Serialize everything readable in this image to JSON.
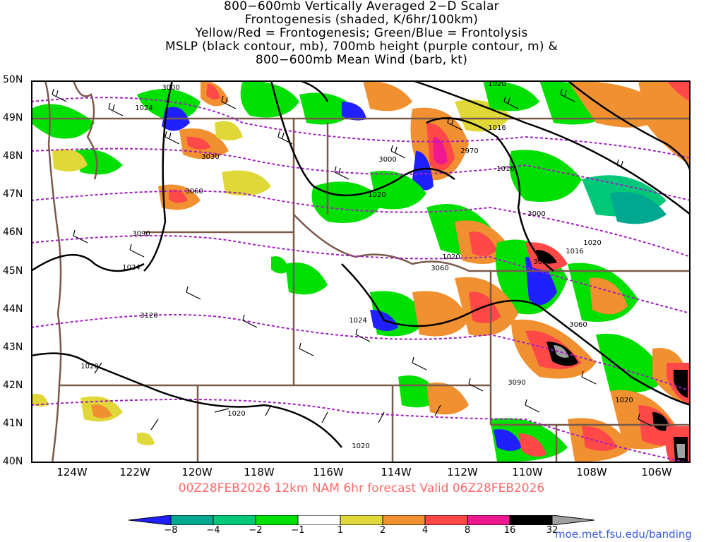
{
  "title_lines": [
    "800−600mb Vertically Averaged 2−D Scalar",
    "Frontogenesis (shaded, K/6hr/100km)",
    "Yellow/Red = Frontogenesis;  Green/Blue = Frontolysis",
    "MSLP (black contour, mb), 700mb height (purple contour, m) &",
    "800−600mb Mean Wind (barb, kt)"
  ],
  "lat_labels": [
    "50N",
    "49N",
    "48N",
    "47N",
    "46N",
    "45N",
    "44N",
    "43N",
    "42N",
    "41N",
    "40N"
  ],
  "lon_labels": [
    "124W",
    "122W",
    "120W",
    "118W",
    "116W",
    "114W",
    "112W",
    "110W",
    "108W",
    "106W"
  ],
  "valid_text": "00Z28FEB2026 12km NAM 6hr forecast Valid 06Z28FEB2026",
  "colorbar": {
    "labels": [
      "−8",
      "−4",
      "−2",
      "−1",
      "1",
      "2",
      "4",
      "8",
      "16",
      "32"
    ],
    "colors": [
      "#2020ff",
      "#00a890",
      "#00c878",
      "#00e000",
      "#ffffff",
      "#e0d838",
      "#f09030",
      "#ff4848",
      "#f01890",
      "#000000",
      "#a0a0a0"
    ]
  },
  "credit": "moe.met.fsu.edu/banding",
  "mslp_labels": [
    "1024",
    "1024",
    "1020",
    "1020",
    "1016",
    "1016",
    "1016",
    "1020",
    "1024",
    "1020",
    "1020",
    "1020",
    "1020"
  ],
  "height_labels": [
    "3000",
    "3030",
    "3060",
    "3090",
    "3120",
    "3000",
    "2970",
    "3060",
    "3030",
    "3060",
    "3000",
    "3090"
  ],
  "colors": {
    "border": "#7a5a4a",
    "height_contour": "#a020c0",
    "mslp_contour": "#000000",
    "valid_text": "#ff6a6a",
    "credit": "#3b5bdc"
  }
}
